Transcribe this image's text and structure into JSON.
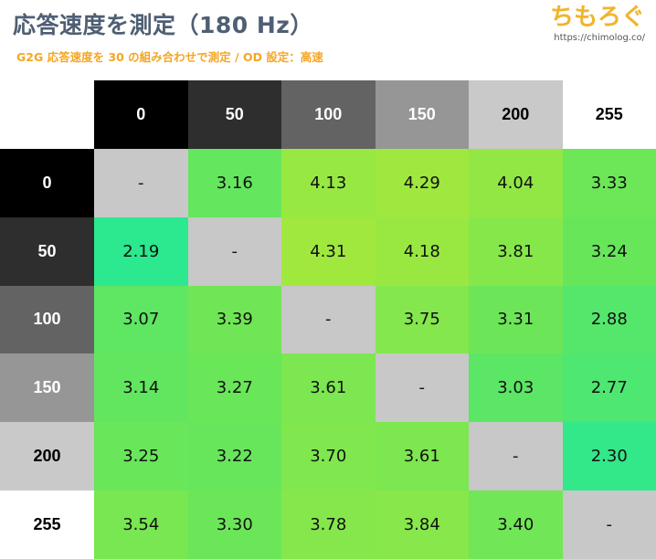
{
  "title": "応答速度を測定（180 Hz）",
  "subtitle": "G2G 応答速度を 30 の組み合わせで測定 / OD 設定：高速",
  "logo": {
    "mark": "ちもろぐ",
    "url": "https://chimolog.co/"
  },
  "colors": {
    "gray_na": "#c8c8c8",
    "headers": [
      "#000000",
      "#2e2e2e",
      "#636363",
      "#969696",
      "#c9c9c9",
      "#ffffff"
    ],
    "header_text": [
      "#ffffff",
      "#ffffff",
      "#ffffff",
      "#ffffff",
      "#000000",
      "#000000"
    ]
  },
  "chart_data": {
    "type": "heatmap",
    "title": "応答速度を測定（180 Hz）",
    "subtitle": "G2G 応答速度を 30 の組み合わせで測定 / OD 設定：高速",
    "columns": [
      "0",
      "50",
      "100",
      "150",
      "200",
      "255"
    ],
    "rows": [
      "0",
      "50",
      "100",
      "150",
      "200",
      "255"
    ],
    "values": [
      [
        "-",
        "3.16",
        "4.13",
        "4.29",
        "4.04",
        "3.33"
      ],
      [
        "2.19",
        "-",
        "4.31",
        "4.18",
        "3.81",
        "3.24"
      ],
      [
        "3.07",
        "3.39",
        "-",
        "3.75",
        "3.31",
        "2.88"
      ],
      [
        "3.14",
        "3.27",
        "3.61",
        "-",
        "3.03",
        "2.77"
      ],
      [
        "3.25",
        "3.22",
        "3.70",
        "3.61",
        "-",
        "2.30"
      ],
      [
        "3.54",
        "3.30",
        "3.78",
        "3.84",
        "3.40",
        "-"
      ]
    ]
  }
}
